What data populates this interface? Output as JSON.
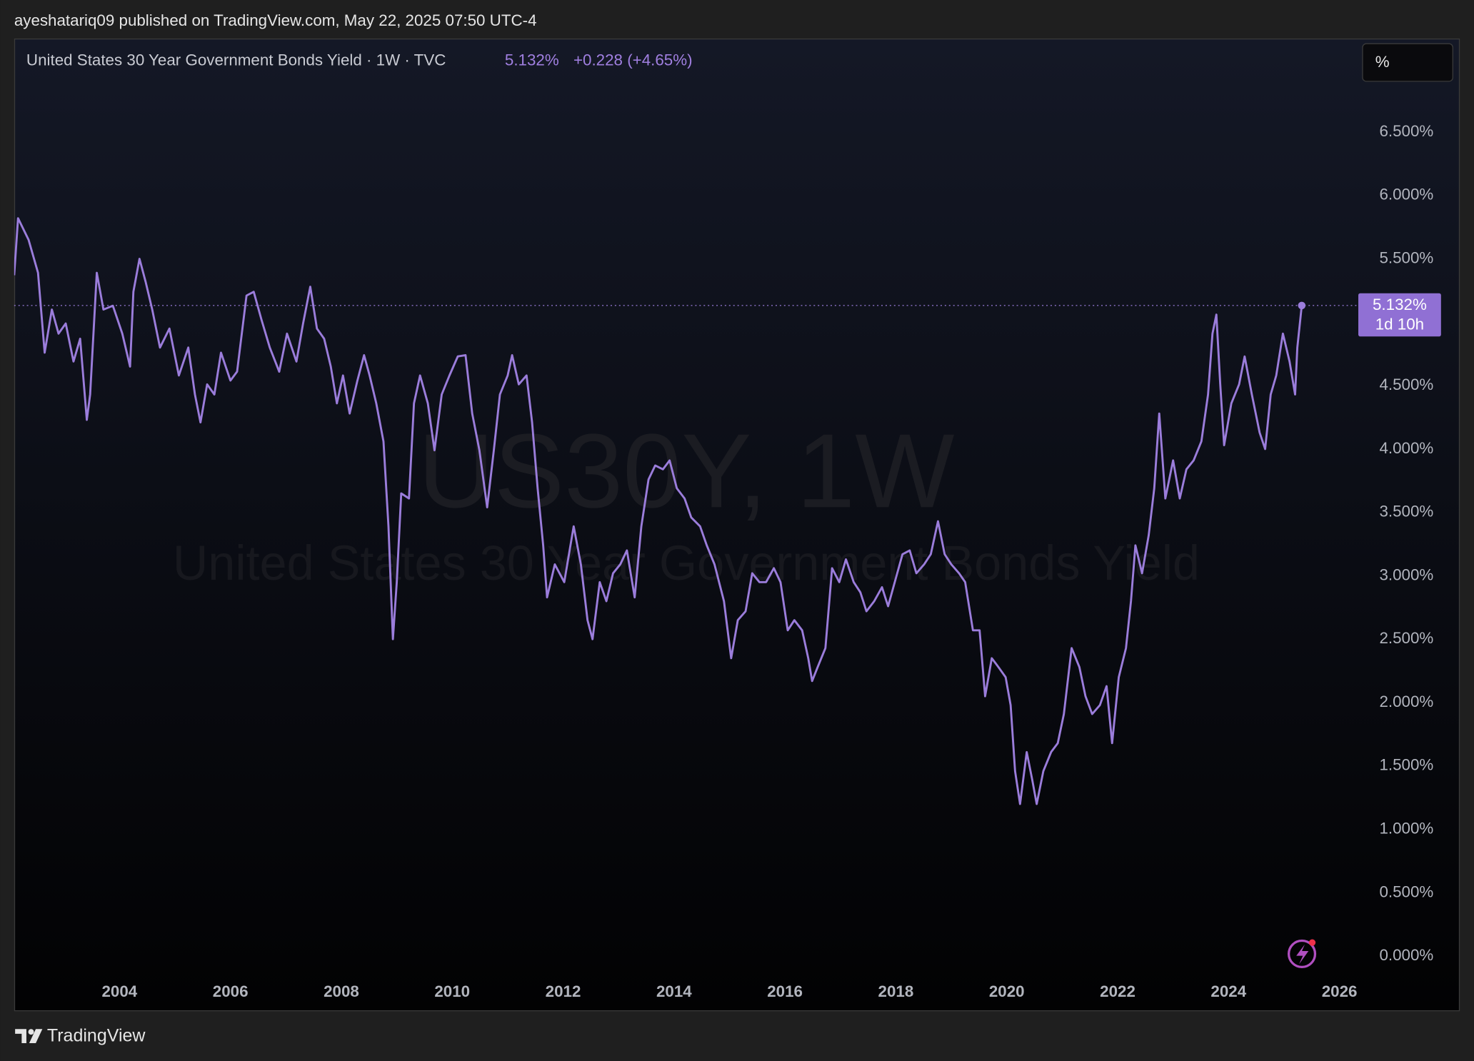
{
  "header": {
    "published": "ayeshatariq09 published on TradingView.com, May 22, 2025 07:50 UTC-4"
  },
  "footer": {
    "brand": "TradingView"
  },
  "chart_data": {
    "type": "line",
    "title": "United States 30 Year Government Bonds Yield · 1W · TVC",
    "last_value_label": "5.132%",
    "change": "+0.228 (+4.65%)",
    "countdown": "1d 10h",
    "scale_button": "%",
    "watermark_symbol": "US30Y, 1W",
    "watermark_name": "United States 30 Year Government Bonds Yield",
    "color": "#9b7ddb",
    "xlim": [
      2002.1,
      2026.34
    ],
    "ylim": [
      -0.13,
      7.23
    ],
    "xticks": [
      2004,
      2006,
      2008,
      2010,
      2012,
      2014,
      2016,
      2018,
      2020,
      2022,
      2024,
      2026
    ],
    "yticks": [
      {
        "value": 0,
        "label": "0.000%"
      },
      {
        "value": 0.5,
        "label": "0.500%"
      },
      {
        "value": 1,
        "label": "1.000%"
      },
      {
        "value": 1.5,
        "label": "1.500%"
      },
      {
        "value": 2,
        "label": "2.000%"
      },
      {
        "value": 2.5,
        "label": "2.500%"
      },
      {
        "value": 3,
        "label": "3.000%"
      },
      {
        "value": 3.5,
        "label": "3.500%"
      },
      {
        "value": 4,
        "label": "4.000%"
      },
      {
        "value": 4.5,
        "label": "4.500%"
      },
      {
        "value": 5,
        "label": "5.000%"
      },
      {
        "value": 5.5,
        "label": "5.500%"
      },
      {
        "value": 6,
        "label": "6.000%"
      },
      {
        "value": 6.5,
        "label": "6.500%"
      }
    ],
    "x": [
      2002.1,
      2002.17,
      2002.36,
      2002.53,
      2002.65,
      2002.78,
      2002.9,
      2003.03,
      2003.17,
      2003.29,
      2003.41,
      2003.47,
      2003.59,
      2003.71,
      2003.88,
      2004.05,
      2004.19,
      2004.25,
      2004.36,
      2004.47,
      2004.59,
      2004.73,
      2004.9,
      2005.07,
      2005.24,
      2005.36,
      2005.46,
      2005.58,
      2005.71,
      2005.83,
      2006.0,
      2006.12,
      2006.29,
      2006.42,
      2006.56,
      2006.71,
      2006.88,
      2007.02,
      2007.19,
      2007.31,
      2007.44,
      2007.56,
      2007.69,
      2007.81,
      2007.92,
      2008.03,
      2008.15,
      2008.29,
      2008.41,
      2008.51,
      2008.63,
      2008.76,
      2008.85,
      2008.93,
      2009.0,
      2009.08,
      2009.22,
      2009.31,
      2009.42,
      2009.56,
      2009.68,
      2009.81,
      2009.95,
      2010.1,
      2010.24,
      2010.36,
      2010.49,
      2010.63,
      2010.75,
      2010.86,
      2011.0,
      2011.08,
      2011.2,
      2011.34,
      2011.44,
      2011.54,
      2011.64,
      2011.71,
      2011.85,
      2012.02,
      2012.19,
      2012.32,
      2012.44,
      2012.53,
      2012.66,
      2012.78,
      2012.9,
      2013.03,
      2013.15,
      2013.29,
      2013.41,
      2013.54,
      2013.66,
      2013.8,
      2013.92,
      2014.05,
      2014.19,
      2014.31,
      2014.47,
      2014.59,
      2014.73,
      2014.9,
      2015.03,
      2015.15,
      2015.29,
      2015.41,
      2015.54,
      2015.66,
      2015.8,
      2015.92,
      2016.05,
      2016.17,
      2016.31,
      2016.42,
      2016.49,
      2016.59,
      2016.73,
      2016.85,
      2016.98,
      2017.1,
      2017.24,
      2017.36,
      2017.47,
      2017.61,
      2017.75,
      2017.86,
      2017.98,
      2018.12,
      2018.25,
      2018.37,
      2018.51,
      2018.63,
      2018.76,
      2018.88,
      2019.0,
      2019.14,
      2019.25,
      2019.39,
      2019.51,
      2019.61,
      2019.73,
      2019.85,
      2019.98,
      2020.07,
      2020.15,
      2020.24,
      2020.36,
      2020.46,
      2020.54,
      2020.66,
      2020.8,
      2020.92,
      2021.03,
      2021.17,
      2021.31,
      2021.42,
      2021.54,
      2021.68,
      2021.8,
      2021.9,
      2022.02,
      2022.15,
      2022.24,
      2022.32,
      2022.44,
      2022.56,
      2022.66,
      2022.75,
      2022.86,
      2023.0,
      2023.12,
      2023.24,
      2023.37,
      2023.51,
      2023.63,
      2023.71,
      2023.78,
      2023.85,
      2023.92,
      2024.05,
      2024.19,
      2024.29,
      2024.42,
      2024.56,
      2024.66,
      2024.76,
      2024.86,
      2024.98,
      2025.1,
      2025.2,
      2025.24,
      2025.32
    ],
    "values": [
      5.37,
      5.82,
      5.65,
      5.39,
      4.76,
      5.1,
      4.91,
      4.99,
      4.69,
      4.87,
      4.23,
      4.43,
      5.39,
      5.1,
      5.13,
      4.91,
      4.65,
      5.24,
      5.5,
      5.32,
      5.1,
      4.8,
      4.95,
      4.58,
      4.8,
      4.43,
      4.21,
      4.51,
      4.43,
      4.76,
      4.54,
      4.61,
      5.21,
      5.24,
      5.02,
      4.8,
      4.61,
      4.91,
      4.69,
      4.99,
      5.28,
      4.95,
      4.87,
      4.65,
      4.36,
      4.58,
      4.28,
      4.54,
      4.74,
      4.58,
      4.36,
      4.06,
      3.39,
      2.5,
      2.95,
      3.65,
      3.61,
      4.36,
      4.58,
      4.36,
      3.99,
      4.43,
      4.58,
      4.73,
      4.74,
      4.28,
      3.99,
      3.54,
      3.99,
      4.43,
      4.58,
      4.74,
      4.51,
      4.58,
      4.21,
      3.69,
      3.24,
      2.83,
      3.09,
      2.95,
      3.39,
      3.09,
      2.65,
      2.5,
      2.95,
      2.8,
      3.02,
      3.09,
      3.2,
      2.83,
      3.39,
      3.76,
      3.87,
      3.84,
      3.91,
      3.69,
      3.61,
      3.46,
      3.39,
      3.24,
      3.09,
      2.8,
      2.35,
      2.65,
      2.72,
      3.02,
      2.95,
      2.95,
      3.06,
      2.95,
      2.57,
      2.65,
      2.57,
      2.35,
      2.17,
      2.28,
      2.43,
      3.06,
      2.95,
      3.13,
      2.95,
      2.87,
      2.72,
      2.8,
      2.91,
      2.76,
      2.95,
      3.17,
      3.2,
      3.02,
      3.09,
      3.17,
      3.43,
      3.17,
      3.09,
      3.02,
      2.95,
      2.57,
      2.57,
      2.05,
      2.35,
      2.28,
      2.2,
      1.98,
      1.46,
      1.2,
      1.61,
      1.39,
      1.2,
      1.46,
      1.61,
      1.68,
      1.91,
      2.43,
      2.28,
      2.05,
      1.91,
      1.98,
      2.13,
      1.68,
      2.2,
      2.43,
      2.8,
      3.24,
      3.02,
      3.32,
      3.69,
      4.28,
      3.61,
      3.91,
      3.61,
      3.84,
      3.91,
      4.06,
      4.43,
      4.91,
      5.06,
      4.51,
      4.03,
      4.36,
      4.51,
      4.73,
      4.43,
      4.13,
      4.0,
      4.43,
      4.58,
      4.91,
      4.69,
      4.43,
      4.8,
      5.132
    ]
  }
}
